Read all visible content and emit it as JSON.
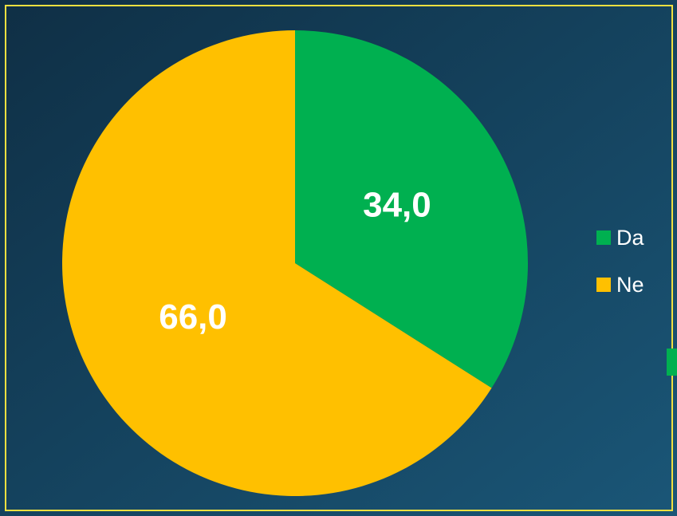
{
  "chart_data": {
    "type": "pie",
    "categories": [
      "Da",
      "Ne"
    ],
    "values": [
      34,
      66
    ],
    "value_labels": [
      "34,0",
      "66,0"
    ],
    "colors": [
      "#00b050",
      "#ffc000"
    ],
    "legend": "right"
  }
}
